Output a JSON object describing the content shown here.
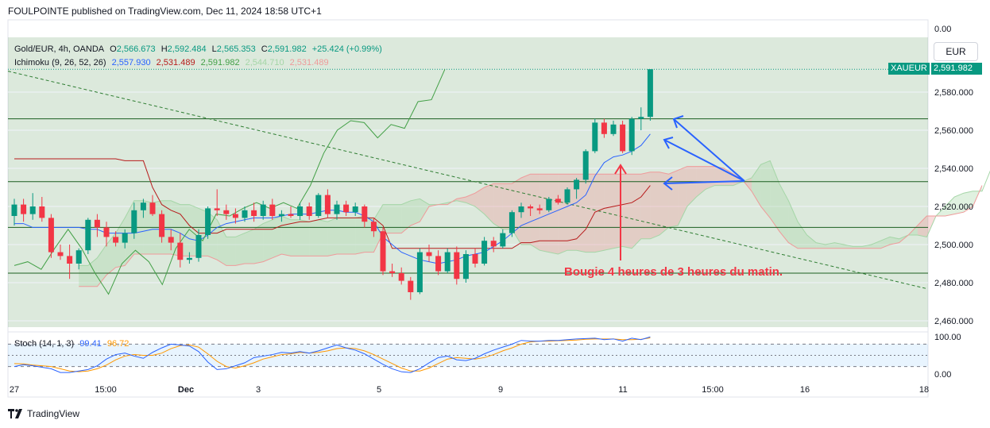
{
  "header": {
    "published": "FOULPOINTE published on TradingView.com, Dec 11, 2024 18:58 UTC+1"
  },
  "legend": {
    "symbol": "Gold/EUR, 4h, OANDA",
    "o_label": "O",
    "o_value": "2,566.673",
    "h_label": "H",
    "h_value": "2,592.484",
    "l_label": "L",
    "l_value": "2,565.353",
    "c_label": "C",
    "c_value": "2,591.982",
    "change": "+25.424 (+0.99%)",
    "ichimoku_label": "Ichimoku (9, 26, 52, 26)",
    "ichimoku_values": [
      "2,557.930",
      "2,531.489",
      "2,591.982",
      "2,544.710",
      "2,531.489"
    ],
    "stoch_label": "Stoch (14, 1, 3)",
    "stoch_k": "99.41",
    "stoch_d": "96.72"
  },
  "currency_button": "EUR",
  "price_tag": {
    "symbol": "XAUEUR",
    "value": "2,591.982"
  },
  "annotation": "Bougie 4 heures de 3 heures du matin.",
  "footer": {
    "brand": "TradingView"
  },
  "colors": {
    "up": "#089981",
    "down": "#f23645",
    "conversion": "#2962ff",
    "base": "#b71c1c",
    "lagging": "#43a047",
    "cloud_up": "#a5d6a7",
    "cloud_down": "#ef9a9a",
    "annotation": "#f23645",
    "arrows": "#2962ff",
    "stoch_k": "#2962ff",
    "stoch_d": "#ff9800"
  },
  "chart_data": [
    {
      "type": "candlestick",
      "title": "Gold/EUR, 4h, OANDA",
      "y_ticks": [
        "2,460.000",
        "2,480.000",
        "2,500.000",
        "2,520.000",
        "2,540.000",
        "2,560.000",
        "2,580.000",
        "0.00"
      ],
      "x_ticks": [
        "27",
        "15:00",
        "Dec",
        "3",
        "5",
        "9",
        "11",
        "15:00",
        "16",
        "18"
      ],
      "ylim": [
        2456,
        2607
      ],
      "grid": true,
      "bars": [
        {
          "o": 2515,
          "h": 2524,
          "l": 2510,
          "c": 2521
        },
        {
          "o": 2521,
          "h": 2524,
          "l": 2512,
          "c": 2516
        },
        {
          "o": 2516,
          "h": 2527,
          "l": 2513,
          "c": 2520
        },
        {
          "o": 2520,
          "h": 2525,
          "l": 2512,
          "c": 2514
        },
        {
          "o": 2514,
          "h": 2516,
          "l": 2493,
          "c": 2496
        },
        {
          "o": 2496,
          "h": 2500,
          "l": 2492,
          "c": 2494
        },
        {
          "o": 2494,
          "h": 2500,
          "l": 2482,
          "c": 2490
        },
        {
          "o": 2490,
          "h": 2498,
          "l": 2487,
          "c": 2497
        },
        {
          "o": 2497,
          "h": 2514,
          "l": 2495,
          "c": 2513
        },
        {
          "o": 2513,
          "h": 2516,
          "l": 2504,
          "c": 2509
        },
        {
          "o": 2509,
          "h": 2512,
          "l": 2499,
          "c": 2504
        },
        {
          "o": 2504,
          "h": 2507,
          "l": 2499,
          "c": 2501
        },
        {
          "o": 2501,
          "h": 2508,
          "l": 2498,
          "c": 2506
        },
        {
          "o": 2506,
          "h": 2522,
          "l": 2503,
          "c": 2518
        },
        {
          "o": 2518,
          "h": 2524,
          "l": 2514,
          "c": 2522
        },
        {
          "o": 2522,
          "h": 2526,
          "l": 2515,
          "c": 2516
        },
        {
          "o": 2516,
          "h": 2518,
          "l": 2501,
          "c": 2504
        },
        {
          "o": 2504,
          "h": 2508,
          "l": 2497,
          "c": 2501
        },
        {
          "o": 2501,
          "h": 2506,
          "l": 2488,
          "c": 2492
        },
        {
          "o": 2492,
          "h": 2496,
          "l": 2490,
          "c": 2493
        },
        {
          "o": 2493,
          "h": 2508,
          "l": 2491,
          "c": 2505
        },
        {
          "o": 2505,
          "h": 2520,
          "l": 2503,
          "c": 2519
        },
        {
          "o": 2519,
          "h": 2529,
          "l": 2515,
          "c": 2518
        },
        {
          "o": 2518,
          "h": 2521,
          "l": 2513,
          "c": 2516
        },
        {
          "o": 2516,
          "h": 2519,
          "l": 2511,
          "c": 2514
        },
        {
          "o": 2514,
          "h": 2520,
          "l": 2512,
          "c": 2518
        },
        {
          "o": 2518,
          "h": 2522,
          "l": 2512,
          "c": 2515
        },
        {
          "o": 2515,
          "h": 2523,
          "l": 2513,
          "c": 2521
        },
        {
          "o": 2521,
          "h": 2524,
          "l": 2513,
          "c": 2515
        },
        {
          "o": 2515,
          "h": 2518,
          "l": 2512,
          "c": 2516
        },
        {
          "o": 2516,
          "h": 2520,
          "l": 2514,
          "c": 2515
        },
        {
          "o": 2515,
          "h": 2522,
          "l": 2513,
          "c": 2520
        },
        {
          "o": 2520,
          "h": 2522,
          "l": 2513,
          "c": 2515
        },
        {
          "o": 2515,
          "h": 2527,
          "l": 2514,
          "c": 2526
        },
        {
          "o": 2526,
          "h": 2529,
          "l": 2514,
          "c": 2516
        },
        {
          "o": 2516,
          "h": 2523,
          "l": 2513,
          "c": 2521
        },
        {
          "o": 2521,
          "h": 2523,
          "l": 2515,
          "c": 2517
        },
        {
          "o": 2517,
          "h": 2522,
          "l": 2515,
          "c": 2520
        },
        {
          "o": 2520,
          "h": 2521,
          "l": 2509,
          "c": 2512
        },
        {
          "o": 2512,
          "h": 2514,
          "l": 2504,
          "c": 2507
        },
        {
          "o": 2507,
          "h": 2509,
          "l": 2484,
          "c": 2486
        },
        {
          "o": 2486,
          "h": 2490,
          "l": 2483,
          "c": 2485
        },
        {
          "o": 2485,
          "h": 2488,
          "l": 2479,
          "c": 2481
        },
        {
          "o": 2481,
          "h": 2483,
          "l": 2471,
          "c": 2475
        },
        {
          "o": 2475,
          "h": 2498,
          "l": 2474,
          "c": 2496
        },
        {
          "o": 2496,
          "h": 2500,
          "l": 2491,
          "c": 2494
        },
        {
          "o": 2494,
          "h": 2497,
          "l": 2484,
          "c": 2486
        },
        {
          "o": 2486,
          "h": 2498,
          "l": 2485,
          "c": 2496
        },
        {
          "o": 2496,
          "h": 2499,
          "l": 2479,
          "c": 2482
        },
        {
          "o": 2482,
          "h": 2497,
          "l": 2480,
          "c": 2495
        },
        {
          "o": 2495,
          "h": 2498,
          "l": 2488,
          "c": 2490
        },
        {
          "o": 2490,
          "h": 2504,
          "l": 2489,
          "c": 2502
        },
        {
          "o": 2502,
          "h": 2504,
          "l": 2496,
          "c": 2499
        },
        {
          "o": 2499,
          "h": 2508,
          "l": 2498,
          "c": 2506
        },
        {
          "o": 2506,
          "h": 2518,
          "l": 2504,
          "c": 2517
        },
        {
          "o": 2517,
          "h": 2522,
          "l": 2514,
          "c": 2520
        },
        {
          "o": 2520,
          "h": 2521,
          "l": 2515,
          "c": 2519
        },
        {
          "o": 2519,
          "h": 2521,
          "l": 2516,
          "c": 2518
        },
        {
          "o": 2518,
          "h": 2525,
          "l": 2517,
          "c": 2524
        },
        {
          "o": 2524,
          "h": 2526,
          "l": 2521,
          "c": 2522
        },
        {
          "o": 2522,
          "h": 2530,
          "l": 2521,
          "c": 2529
        },
        {
          "o": 2529,
          "h": 2535,
          "l": 2524,
          "c": 2534
        },
        {
          "o": 2534,
          "h": 2550,
          "l": 2532,
          "c": 2549
        },
        {
          "o": 2549,
          "h": 2566,
          "l": 2548,
          "c": 2564
        },
        {
          "o": 2564,
          "h": 2566,
          "l": 2556,
          "c": 2558
        },
        {
          "o": 2558,
          "h": 2565,
          "l": 2557,
          "c": 2563
        },
        {
          "o": 2563,
          "h": 2565,
          "l": 2548,
          "c": 2549
        },
        {
          "o": 2549,
          "h": 2567,
          "l": 2547,
          "c": 2566
        },
        {
          "o": 2566,
          "h": 2572,
          "l": 2560,
          "c": 2567
        },
        {
          "o": 2567,
          "h": 2592,
          "l": 2565,
          "c": 2592
        }
      ],
      "horizontal_levels": [
        2566,
        2533,
        2509,
        2485
      ],
      "trendline": {
        "start": 2591,
        "end": 2477
      },
      "ichimoku": {
        "conversion": [
          2511,
          2511,
          2509,
          2509,
          2509,
          2509,
          2509,
          2509,
          2508,
          2508,
          2506,
          2506,
          2506,
          2506,
          2507,
          2508,
          2508,
          2508,
          2506,
          2503,
          2502,
          2505,
          2509,
          2511,
          2512,
          2513,
          2514,
          2514,
          2514,
          2515,
          2516,
          2516,
          2516,
          2517,
          2518,
          2518,
          2517,
          2517,
          2515,
          2512,
          2504,
          2500,
          2496,
          2494,
          2492,
          2491,
          2490,
          2491,
          2492,
          2494,
          2495,
          2496,
          2499,
          2502,
          2506,
          2510,
          2512,
          2514,
          2516,
          2518,
          2520,
          2522,
          2526,
          2536,
          2543,
          2546,
          2547,
          2549,
          2552,
          2558
        ],
        "base": [
          2545,
          2545,
          2545,
          2545,
          2545,
          2545,
          2545,
          2545,
          2545,
          2545,
          2545,
          2545,
          2544,
          2544,
          2544,
          2530,
          2521,
          2518,
          2516,
          2510,
          2506,
          2506,
          2506,
          2508,
          2508,
          2508,
          2508,
          2508,
          2508,
          2510,
          2511,
          2512,
          2512,
          2513,
          2514,
          2514,
          2514,
          2514,
          2514,
          2514,
          2510,
          2498,
          2498,
          2498,
          2498,
          2498,
          2498,
          2498,
          2498,
          2498,
          2498,
          2498,
          2498,
          2498,
          2498,
          2501,
          2501,
          2502,
          2502,
          2502,
          2502,
          2503,
          2508,
          2517,
          2519,
          2520,
          2521,
          2522,
          2525,
          2531
        ],
        "lagging": [
          2489,
          2491,
          2487,
          2498,
          2508,
          2498,
          2485,
          2474,
          2490,
          2497,
          2491,
          2479,
          2498,
          2508,
          2502,
          2516,
          2515,
          2519,
          2522,
          2519,
          2522,
          2519,
          2531,
          2548,
          2560,
          2565,
          2564,
          2556,
          2563,
          2561,
          2575,
          2576,
          2592
        ],
        "span_a": [
          2489,
          2489,
          2493,
          2500,
          2506,
          2514,
          2523,
          2523,
          2522,
          2523,
          2523,
          2521,
          2521,
          2519,
          2517,
          2513,
          2504,
          2504,
          2506,
          2508,
          2511,
          2513,
          2515,
          2513,
          2513,
          2512,
          2513,
          2512,
          2514,
          2514,
          2514,
          2515,
          2513,
          2521,
          2521,
          2521,
          2523,
          2524,
          2521,
          2521,
          2522,
          2523,
          2522,
          2520,
          2516,
          2511,
          2508,
          2508,
          2500,
          2500,
          2497,
          2496,
          2495,
          2497,
          2497,
          2496,
          2496,
          2497,
          2498,
          2499,
          2498,
          2503,
          2503,
          2505,
          2509,
          2510,
          2520,
          2525,
          2529,
          2531,
          2531,
          2531,
          2533,
          2535,
          2542,
          2544,
          2532,
          2523,
          2512,
          2505,
          2501,
          2500,
          2501,
          2500,
          2499,
          2499,
          2500,
          2502,
          2504,
          2503,
          2505,
          2505,
          2504,
          2515,
          2520,
          2525,
          2527,
          2528,
          2528,
          2540
        ],
        "span_b": [
          2478,
          2478,
          2478,
          2484,
          2488,
          2489,
          2495,
          2495,
          2495,
          2495,
          2495,
          2494,
          2494,
          2494,
          2494,
          2492,
          2489,
          2489,
          2490,
          2490,
          2491,
          2493,
          2495,
          2494,
          2494,
          2494,
          2494,
          2494,
          2495,
          2495,
          2495,
          2496,
          2496,
          2506,
          2506,
          2506,
          2510,
          2512,
          2520,
          2521,
          2521,
          2524,
          2525,
          2527,
          2530,
          2532,
          2532,
          2532,
          2535,
          2537,
          2537,
          2537,
          2537,
          2537,
          2537,
          2537,
          2537,
          2537,
          2537,
          2537,
          2537,
          2537,
          2538,
          2538,
          2537,
          2539,
          2541,
          2541,
          2541,
          2541,
          2540,
          2537,
          2534,
          2528,
          2520,
          2514,
          2507,
          2501,
          2498,
          2498,
          2498,
          2498,
          2498,
          2498,
          2498,
          2498,
          2498,
          2498,
          2500,
          2501,
          2505,
          2510,
          2515,
          2515,
          2515,
          2516,
          2517,
          2520,
          2531
        ]
      }
    },
    {
      "type": "line",
      "title": "Stoch (14, 1, 3)",
      "y_ticks": [
        "100.00",
        "0.00"
      ],
      "ylim": [
        0,
        100
      ],
      "bands": [
        80,
        50,
        20
      ],
      "series": [
        {
          "name": "99.41",
          "values": [
            20,
            25,
            22,
            18,
            14,
            4,
            4,
            8,
            12,
            22,
            40,
            52,
            56,
            48,
            42,
            58,
            70,
            80,
            78,
            75,
            60,
            32,
            12,
            14,
            22,
            30,
            44,
            48,
            52,
            58,
            56,
            60,
            56,
            62,
            70,
            78,
            70,
            64,
            54,
            40,
            26,
            14,
            6,
            4,
            14,
            30,
            44,
            48,
            38,
            36,
            42,
            54,
            64,
            72,
            80,
            90,
            88,
            88,
            90,
            90,
            92,
            94,
            95,
            96,
            92,
            94,
            88,
            96,
            92,
            99.41
          ]
        },
        {
          "name": "96.72",
          "values": [
            28,
            27,
            24,
            22,
            20,
            14,
            8,
            6,
            8,
            14,
            24,
            38,
            48,
            52,
            50,
            50,
            56,
            68,
            76,
            78,
            72,
            54,
            34,
            20,
            16,
            22,
            30,
            40,
            46,
            52,
            54,
            58,
            56,
            58,
            62,
            68,
            70,
            68,
            62,
            52,
            40,
            28,
            16,
            8,
            8,
            16,
            28,
            40,
            44,
            42,
            40,
            44,
            52,
            62,
            70,
            80,
            86,
            88,
            88,
            89,
            90,
            91,
            93,
            94,
            94,
            94,
            92,
            92,
            93,
            96.72
          ]
        }
      ]
    }
  ]
}
